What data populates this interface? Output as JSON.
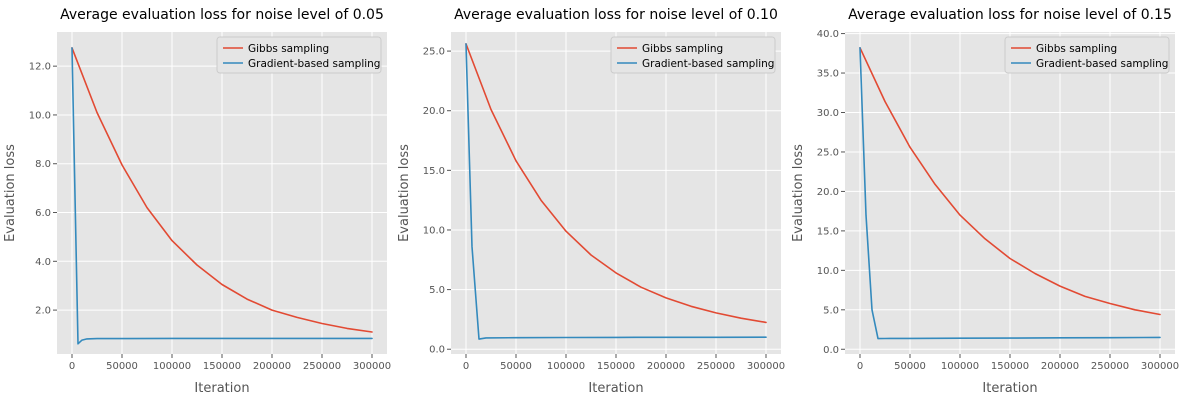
{
  "chart_data": [
    {
      "type": "line",
      "title": "Average evaluation loss for noise level of 0.05",
      "xlabel": "Iteration",
      "ylabel": "Evaluation loss",
      "xlim": [
        -15000,
        315000
      ],
      "ylim": [
        0.2,
        13.4
      ],
      "xticks": [
        0,
        50000,
        100000,
        150000,
        200000,
        250000,
        300000
      ],
      "yticks": [
        2.0,
        4.0,
        6.0,
        8.0,
        10.0,
        12.0
      ],
      "xtick_labels": [
        "0",
        "50000",
        "100000",
        "150000",
        "200000",
        "250000",
        "300000"
      ],
      "ytick_labels": [
        "2.0",
        "4.0",
        "6.0",
        "8.0",
        "10.0",
        "12.0"
      ],
      "grid": true,
      "legend_position": "top-right",
      "series": [
        {
          "name": "Gibbs sampling",
          "color": "#E24A33",
          "x": [
            0,
            25000,
            50000,
            75000,
            100000,
            125000,
            150000,
            175000,
            200000,
            225000,
            250000,
            275000,
            300000
          ],
          "values": [
            12.75,
            10.1,
            7.95,
            6.2,
            4.85,
            3.85,
            3.05,
            2.45,
            2.0,
            1.7,
            1.45,
            1.25,
            1.1
          ]
        },
        {
          "name": "Gradient-based sampling",
          "color": "#348ABD",
          "x": [
            0,
            6000,
            10000,
            15000,
            25000,
            50000,
            100000,
            150000,
            200000,
            250000,
            300000
          ],
          "values": [
            12.75,
            0.62,
            0.77,
            0.82,
            0.83,
            0.83,
            0.84,
            0.84,
            0.84,
            0.84,
            0.84
          ]
        }
      ]
    },
    {
      "type": "line",
      "title": "Average evaluation loss for noise level of 0.10",
      "xlabel": "Iteration",
      "ylabel": "Evaluation loss",
      "xlim": [
        -15000,
        315000
      ],
      "ylim": [
        -0.4,
        26.6
      ],
      "xticks": [
        0,
        50000,
        100000,
        150000,
        200000,
        250000,
        300000
      ],
      "yticks": [
        0.0,
        5.0,
        10.0,
        15.0,
        20.0,
        25.0
      ],
      "xtick_labels": [
        "0",
        "50000",
        "100000",
        "150000",
        "200000",
        "250000",
        "300000"
      ],
      "ytick_labels": [
        "0.0",
        "5.0",
        "10.0",
        "15.0",
        "20.0",
        "25.0"
      ],
      "grid": true,
      "legend_position": "top-right",
      "series": [
        {
          "name": "Gibbs sampling",
          "color": "#E24A33",
          "x": [
            0,
            25000,
            50000,
            75000,
            100000,
            125000,
            150000,
            175000,
            200000,
            225000,
            250000,
            275000,
            300000
          ],
          "values": [
            25.6,
            20.1,
            15.8,
            12.5,
            9.9,
            7.9,
            6.4,
            5.2,
            4.3,
            3.6,
            3.05,
            2.6,
            2.25
          ]
        },
        {
          "name": "Gradient-based sampling",
          "color": "#348ABD",
          "x": [
            0,
            6000,
            13000,
            20000,
            50000,
            100000,
            150000,
            200000,
            250000,
            300000
          ],
          "values": [
            25.6,
            8.6,
            0.85,
            0.95,
            0.97,
            0.98,
            0.99,
            1.0,
            1.0,
            1.01
          ]
        }
      ]
    },
    {
      "type": "line",
      "title": "Average evaluation loss for noise level of 0.15",
      "xlabel": "Iteration",
      "ylabel": "Evaluation loss",
      "xlim": [
        -15000,
        315000
      ],
      "ylim": [
        -0.6,
        40.2
      ],
      "xticks": [
        0,
        50000,
        100000,
        150000,
        200000,
        250000,
        300000
      ],
      "yticks": [
        0.0,
        5.0,
        10.0,
        15.0,
        20.0,
        25.0,
        30.0,
        35.0,
        40.0
      ],
      "xtick_labels": [
        "0",
        "50000",
        "100000",
        "150000",
        "200000",
        "250000",
        "300000"
      ],
      "ytick_labels": [
        "0.0",
        "5.0",
        "10.0",
        "15.0",
        "20.0",
        "25.0",
        "30.0",
        "35.0",
        "40.0"
      ],
      "grid": true,
      "legend_position": "top-right",
      "series": [
        {
          "name": "Gibbs sampling",
          "color": "#E24A33",
          "x": [
            0,
            25000,
            50000,
            75000,
            100000,
            125000,
            150000,
            175000,
            200000,
            225000,
            250000,
            275000,
            300000
          ],
          "values": [
            38.2,
            31.4,
            25.6,
            20.9,
            17.0,
            14.0,
            11.5,
            9.6,
            8.0,
            6.7,
            5.8,
            5.0,
            4.4
          ]
        },
        {
          "name": "Gradient-based sampling",
          "color": "#348ABD",
          "x": [
            0,
            6000,
            12000,
            18000,
            25000,
            50000,
            100000,
            150000,
            200000,
            250000,
            300000
          ],
          "values": [
            38.2,
            17.0,
            5.0,
            1.35,
            1.37,
            1.38,
            1.4,
            1.42,
            1.45,
            1.47,
            1.5
          ]
        }
      ]
    }
  ]
}
